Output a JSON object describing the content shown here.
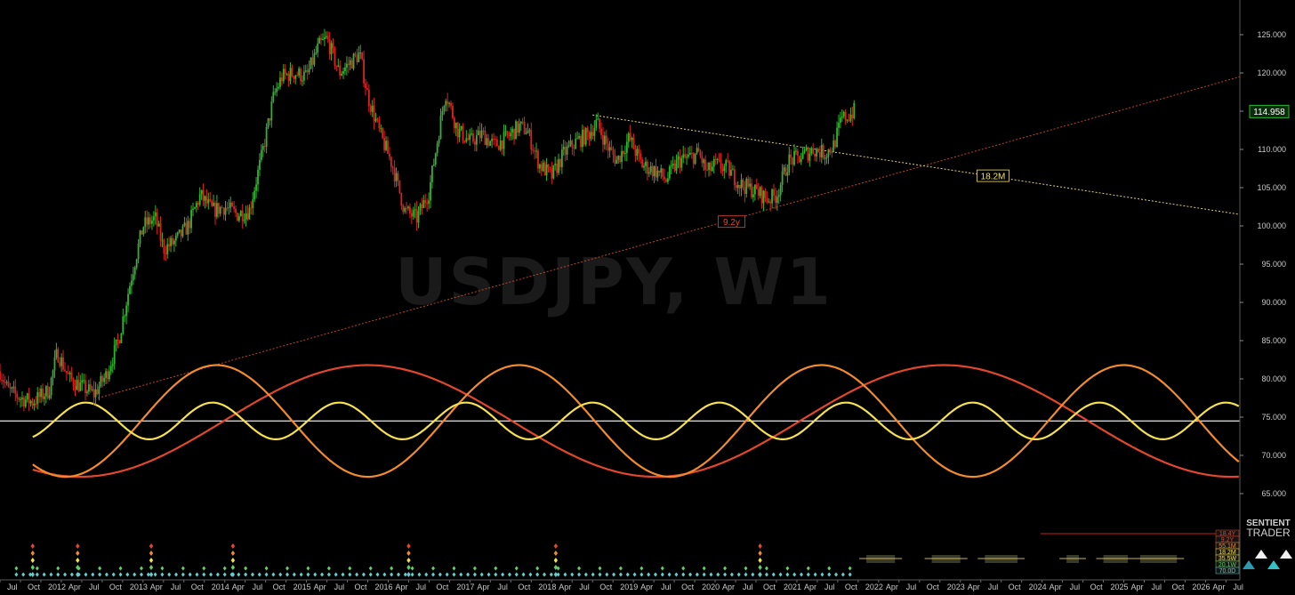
{
  "chart_data": {
    "type": "candlestick",
    "watermark": "USDJPY, W1",
    "ylim": [
      62,
      128
    ],
    "y_ticks": [
      "125.000",
      "120.000",
      "115.000",
      "110.000",
      "105.000",
      "100.000",
      "95.000",
      "90.000",
      "85.000",
      "80.000",
      "75.000",
      "70.000",
      "65.000"
    ],
    "y_tick_values": [
      125,
      120,
      115,
      110,
      105,
      100,
      95,
      90,
      85,
      80,
      75,
      70,
      65
    ],
    "x_range": [
      2011.5,
      2026.67
    ],
    "x_ticks": [
      "Jul",
      "Oct",
      "2012",
      "Apr",
      "Jul",
      "Oct",
      "2013",
      "Apr",
      "Jul",
      "Oct",
      "2014",
      "Apr",
      "Jul",
      "Oct",
      "2015",
      "Apr",
      "Jul",
      "Oct",
      "2016",
      "Apr",
      "Jul",
      "Oct",
      "2017",
      "Apr",
      "Jul",
      "Oct",
      "2018",
      "Apr",
      "Jul",
      "Oct",
      "2019",
      "Apr",
      "Jul",
      "Oct",
      "2020",
      "Apr",
      "Jul",
      "Oct",
      "2021",
      "Apr",
      "Jul",
      "Oct",
      "2022",
      "Apr",
      "Jul",
      "Oct",
      "2023",
      "Apr",
      "Jul",
      "Oct",
      "2024",
      "Apr",
      "Jul",
      "Oct",
      "2025",
      "Apr",
      "Jul",
      "Oct",
      "2026",
      "Apr",
      "Jul"
    ],
    "price_path": [
      [
        2011.5,
        81.0
      ],
      [
        2011.6,
        78.5
      ],
      [
        2011.75,
        77.5
      ],
      [
        2011.9,
        77.0
      ],
      [
        2012.1,
        78.5
      ],
      [
        2012.2,
        83.5
      ],
      [
        2012.35,
        80.0
      ],
      [
        2012.5,
        79.0
      ],
      [
        2012.65,
        78.0
      ],
      [
        2012.8,
        80.5
      ],
      [
        2012.95,
        85.0
      ],
      [
        2013.1,
        93.0
      ],
      [
        2013.25,
        100.0
      ],
      [
        2013.4,
        101.0
      ],
      [
        2013.5,
        97.0
      ],
      [
        2013.65,
        98.0
      ],
      [
        2013.8,
        100.0
      ],
      [
        2013.95,
        104.0
      ],
      [
        2014.1,
        102.0
      ],
      [
        2014.25,
        102.5
      ],
      [
        2014.4,
        101.5
      ],
      [
        2014.55,
        102.0
      ],
      [
        2014.7,
        109.0
      ],
      [
        2014.85,
        117.0
      ],
      [
        2014.95,
        119.5
      ],
      [
        2015.1,
        120.0
      ],
      [
        2015.25,
        119.5
      ],
      [
        2015.4,
        123.5
      ],
      [
        2015.5,
        124.5
      ],
      [
        2015.65,
        120.0
      ],
      [
        2015.75,
        121.0
      ],
      [
        2015.9,
        122.5
      ],
      [
        2016.0,
        117.0
      ],
      [
        2016.15,
        112.0
      ],
      [
        2016.3,
        108.0
      ],
      [
        2016.45,
        102.0
      ],
      [
        2016.6,
        101.0
      ],
      [
        2016.75,
        104.5
      ],
      [
        2016.88,
        113.0
      ],
      [
        2016.95,
        117.5
      ],
      [
        2017.1,
        112.5
      ],
      [
        2017.25,
        111.0
      ],
      [
        2017.4,
        112.0
      ],
      [
        2017.55,
        110.5
      ],
      [
        2017.7,
        111.5
      ],
      [
        2017.85,
        113.0
      ],
      [
        2017.95,
        112.5
      ],
      [
        2018.1,
        108.0
      ],
      [
        2018.25,
        106.5
      ],
      [
        2018.4,
        109.5
      ],
      [
        2018.55,
        111.0
      ],
      [
        2018.7,
        112.0
      ],
      [
        2018.8,
        113.5
      ],
      [
        2018.95,
        110.0
      ],
      [
        2019.05,
        108.5
      ],
      [
        2019.2,
        111.5
      ],
      [
        2019.35,
        108.0
      ],
      [
        2019.55,
        107.0
      ],
      [
        2019.65,
        106.0
      ],
      [
        2019.8,
        108.5
      ],
      [
        2019.95,
        109.0
      ],
      [
        2020.05,
        109.5
      ],
      [
        2020.15,
        107.0
      ],
      [
        2020.25,
        108.0
      ],
      [
        2020.4,
        107.5
      ],
      [
        2020.55,
        105.5
      ],
      [
        2020.75,
        104.5
      ],
      [
        2020.9,
        103.5
      ],
      [
        2021.0,
        104.0
      ],
      [
        2021.15,
        108.5
      ],
      [
        2021.3,
        109.0
      ],
      [
        2021.45,
        110.0
      ],
      [
        2021.6,
        109.5
      ],
      [
        2021.7,
        110.5
      ],
      [
        2021.8,
        114.0
      ],
      [
        2021.9,
        114.5
      ],
      [
        2021.95,
        115.0
      ]
    ],
    "lines": [
      {
        "name": "support",
        "color": "#c0442c",
        "dashed": true,
        "points": [
          [
            2012.7,
            77.5
          ],
          [
            2026.67,
            119.5
          ]
        ]
      },
      {
        "name": "resistance",
        "color": "#e0d080",
        "dashed": true,
        "points": [
          [
            2018.75,
            114.5
          ],
          [
            2026.67,
            101.5
          ]
        ]
      },
      {
        "name": "baseline",
        "color": "#ffffff",
        "dashed": false,
        "points": [
          [
            2011.5,
            74.5
          ],
          [
            2026.67,
            74.5
          ]
        ]
      }
    ],
    "cycles": [
      {
        "name": "18.4Y",
        "color": "#e0472c",
        "amplitude": 7.3,
        "period": 7.05,
        "phase_x": 2016.0,
        "center": 74.5,
        "x_start": 2011.9
      },
      {
        "name": "9.2Y",
        "color": "#f28a2e",
        "amplitude": 7.3,
        "period": 3.7,
        "phase_x": 2014.15,
        "center": 74.5,
        "x_start": 2011.9
      },
      {
        "name": "55.1M",
        "color": "#f5e050",
        "amplitude": 2.4,
        "period": 1.55,
        "phase_x": 2012.55,
        "center": 74.5,
        "x_start": 2011.9
      }
    ],
    "annotations": [
      {
        "text": "18.2M",
        "x": 2023.65,
        "y": 106.5,
        "color": "#f5e050"
      },
      {
        "text": "9.2y",
        "x": 2020.45,
        "y": 100.5,
        "color": "#e0472c"
      }
    ],
    "last_price": "114.958",
    "legend_labels": [
      {
        "text": "18.4Y",
        "color": "#e0472c"
      },
      {
        "text": "9.2Y",
        "color": "#e0472c"
      },
      {
        "text": "55.1M",
        "color": "#f28a2e"
      },
      {
        "text": "18.2M",
        "color": "#f5e050"
      },
      {
        "text": "35.5W",
        "color": "#f5e050"
      },
      {
        "text": "20.1W",
        "color": "#66cc66"
      },
      {
        "text": "70.0D",
        "color": "#66cccc"
      }
    ],
    "brand": "SENTIENT TRADER"
  }
}
